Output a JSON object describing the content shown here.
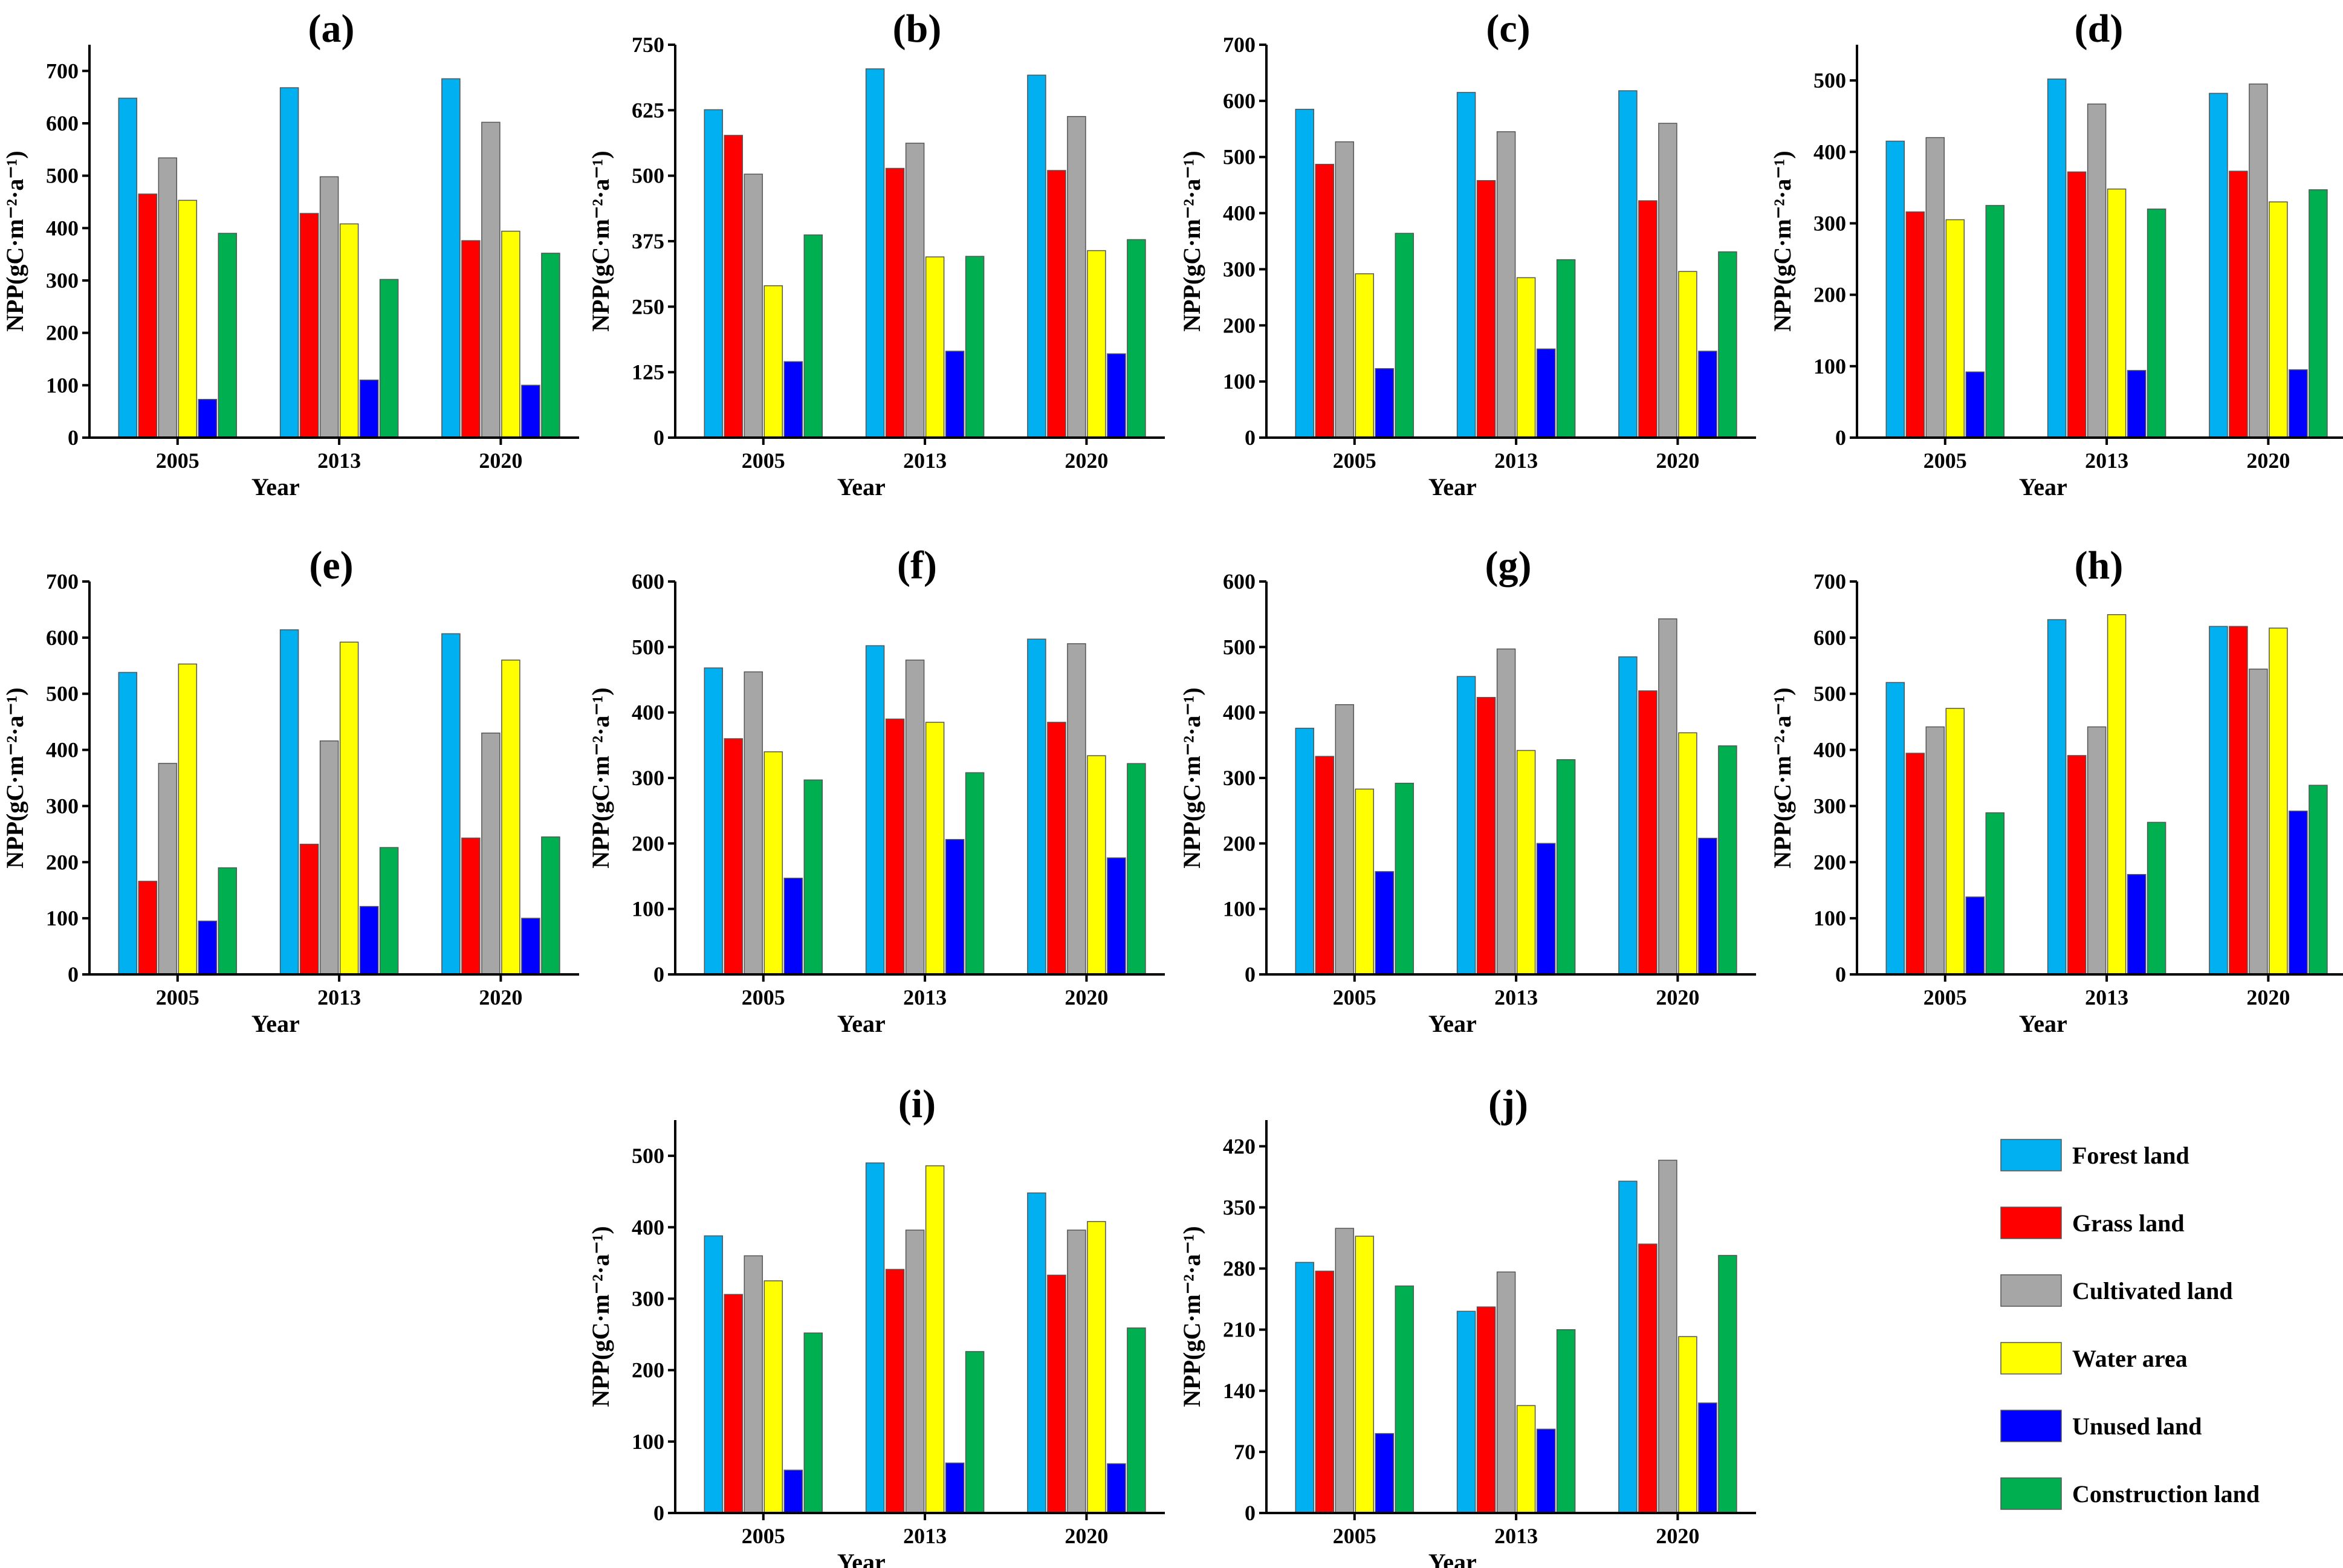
{
  "colors": {
    "Forest land": "#00B0F0",
    "Grass land": "#FF0000",
    "Cultivated land": "#A6A6A6",
    "Water area": "#FFFF00",
    "Unused land": "#0000FF",
    "Construction land": "#00B050"
  },
  "legend": {
    "items": [
      "Forest land",
      "Grass land",
      "Cultivated land",
      "Water area",
      "Unused land",
      "Construction land"
    ]
  },
  "chart_data": [
    {
      "type": "bar",
      "title": "(a)",
      "xlabel": "Year",
      "ylabel": "NPP(gC·m⁻²·a⁻¹)",
      "categories": [
        "2005",
        "2013",
        "2020"
      ],
      "ylim": [
        0,
        750
      ],
      "yticks": [
        0,
        100,
        200,
        300,
        400,
        500,
        600,
        700
      ],
      "series": [
        {
          "name": "Forest land",
          "values": [
            648,
            668,
            685
          ]
        },
        {
          "name": "Grass land",
          "values": [
            465,
            428,
            376
          ]
        },
        {
          "name": "Cultivated land",
          "values": [
            534,
            498,
            602
          ]
        },
        {
          "name": "Water area",
          "values": [
            453,
            408,
            394
          ]
        },
        {
          "name": "Unused land",
          "values": [
            73,
            110,
            100
          ]
        },
        {
          "name": "Construction land",
          "values": [
            390,
            302,
            352
          ]
        }
      ]
    },
    {
      "type": "bar",
      "title": "(b)",
      "xlabel": "Year",
      "ylabel": "NPP(gC·m⁻²·a⁻¹)",
      "categories": [
        "2005",
        "2013",
        "2020"
      ],
      "ylim": [
        0,
        750
      ],
      "yticks": [
        0,
        125,
        250,
        375,
        500,
        625,
        750
      ],
      "series": [
        {
          "name": "Forest land",
          "values": [
            626,
            704,
            692
          ]
        },
        {
          "name": "Grass land",
          "values": [
            577,
            514,
            510
          ]
        },
        {
          "name": "Cultivated land",
          "values": [
            503,
            562,
            613
          ]
        },
        {
          "name": "Water area",
          "values": [
            290,
            345,
            357
          ]
        },
        {
          "name": "Unused land",
          "values": [
            145,
            165,
            160
          ]
        },
        {
          "name": "Construction land",
          "values": [
            387,
            346,
            378
          ]
        }
      ]
    },
    {
      "type": "bar",
      "title": "(c)",
      "xlabel": "Year",
      "ylabel": "NPP(gC·m⁻²·a⁻¹)",
      "categories": [
        "2005",
        "2013",
        "2020"
      ],
      "ylim": [
        0,
        700
      ],
      "yticks": [
        0,
        100,
        200,
        300,
        400,
        500,
        600,
        700
      ],
      "series": [
        {
          "name": "Forest land",
          "values": [
            585,
            615,
            618
          ]
        },
        {
          "name": "Grass land",
          "values": [
            487,
            458,
            422
          ]
        },
        {
          "name": "Cultivated land",
          "values": [
            527,
            545,
            560
          ]
        },
        {
          "name": "Water area",
          "values": [
            292,
            285,
            296
          ]
        },
        {
          "name": "Unused land",
          "values": [
            123,
            158,
            154
          ]
        },
        {
          "name": "Construction land",
          "values": [
            364,
            317,
            331
          ]
        }
      ]
    },
    {
      "type": "bar",
      "title": "(d)",
      "xlabel": "Year",
      "ylabel": "NPP(gC·m⁻²·a⁻¹)",
      "categories": [
        "2005",
        "2013",
        "2020"
      ],
      "ylim": [
        0,
        550
      ],
      "yticks": [
        0,
        100,
        200,
        300,
        400,
        500
      ],
      "series": [
        {
          "name": "Forest land",
          "values": [
            415,
            502,
            482
          ]
        },
        {
          "name": "Grass land",
          "values": [
            316,
            372,
            373
          ]
        },
        {
          "name": "Cultivated land",
          "values": [
            420,
            467,
            495
          ]
        },
        {
          "name": "Water area",
          "values": [
            305,
            348,
            330
          ]
        },
        {
          "name": "Unused land",
          "values": [
            92,
            94,
            95
          ]
        },
        {
          "name": "Construction land",
          "values": [
            325,
            320,
            347
          ]
        }
      ]
    },
    {
      "type": "bar",
      "title": "(e)",
      "xlabel": "Year",
      "ylabel": "NPP(gC·m⁻²·a⁻¹)",
      "categories": [
        "2005",
        "2013",
        "2020"
      ],
      "ylim": [
        0,
        700
      ],
      "yticks": [
        0,
        100,
        200,
        300,
        400,
        500,
        600,
        700
      ],
      "series": [
        {
          "name": "Forest land",
          "values": [
            538,
            614,
            607
          ]
        },
        {
          "name": "Grass land",
          "values": [
            166,
            232,
            243
          ]
        },
        {
          "name": "Cultivated land",
          "values": [
            376,
            416,
            430
          ]
        },
        {
          "name": "Water area",
          "values": [
            553,
            592,
            560
          ]
        },
        {
          "name": "Unused land",
          "values": [
            95,
            121,
            100
          ]
        },
        {
          "name": "Construction land",
          "values": [
            190,
            226,
            245
          ]
        }
      ]
    },
    {
      "type": "bar",
      "title": "(f)",
      "xlabel": "Year",
      "ylabel": "NPP(gC·m⁻²·a⁻¹)",
      "categories": [
        "2005",
        "2013",
        "2020"
      ],
      "ylim": [
        0,
        600
      ],
      "yticks": [
        0,
        100,
        200,
        300,
        400,
        500,
        600
      ],
      "series": [
        {
          "name": "Forest land",
          "values": [
            468,
            502,
            512
          ]
        },
        {
          "name": "Grass land",
          "values": [
            360,
            390,
            385
          ]
        },
        {
          "name": "Cultivated land",
          "values": [
            462,
            480,
            505
          ]
        },
        {
          "name": "Water area",
          "values": [
            340,
            385,
            334
          ]
        },
        {
          "name": "Unused land",
          "values": [
            147,
            206,
            178
          ]
        },
        {
          "name": "Construction land",
          "values": [
            297,
            308,
            322
          ]
        }
      ]
    },
    {
      "type": "bar",
      "title": "(g)",
      "xlabel": "Year",
      "ylabel": "NPP(gC·m⁻²·a⁻¹)",
      "categories": [
        "2005",
        "2013",
        "2020"
      ],
      "ylim": [
        0,
        600
      ],
      "yticks": [
        0,
        100,
        200,
        300,
        400,
        500,
        600
      ],
      "series": [
        {
          "name": "Forest land",
          "values": [
            376,
            455,
            485
          ]
        },
        {
          "name": "Grass land",
          "values": [
            333,
            423,
            433
          ]
        },
        {
          "name": "Cultivated land",
          "values": [
            412,
            497,
            543
          ]
        },
        {
          "name": "Water area",
          "values": [
            283,
            342,
            369
          ]
        },
        {
          "name": "Unused land",
          "values": [
            157,
            200,
            208
          ]
        },
        {
          "name": "Construction land",
          "values": [
            292,
            328,
            349
          ]
        }
      ]
    },
    {
      "type": "bar",
      "title": "(h)",
      "xlabel": "Year",
      "ylabel": "NPP(gC·m⁻²·a⁻¹)",
      "categories": [
        "2005",
        "2013",
        "2020"
      ],
      "ylim": [
        0,
        700
      ],
      "yticks": [
        0,
        100,
        200,
        300,
        400,
        500,
        600,
        700
      ],
      "series": [
        {
          "name": "Forest land",
          "values": [
            520,
            632,
            620
          ]
        },
        {
          "name": "Grass land",
          "values": [
            394,
            390,
            620
          ]
        },
        {
          "name": "Cultivated land",
          "values": [
            441,
            441,
            544
          ]
        },
        {
          "name": "Water area",
          "values": [
            474,
            641,
            617
          ]
        },
        {
          "name": "Unused land",
          "values": [
            138,
            178,
            291
          ]
        },
        {
          "name": "Construction land",
          "values": [
            288,
            271,
            337
          ]
        }
      ]
    },
    {
      "type": "bar",
      "title": "(i)",
      "xlabel": "Year",
      "ylabel": "NPP(gC·m⁻²·a⁻¹)",
      "categories": [
        "2005",
        "2013",
        "2020"
      ],
      "ylim": [
        0,
        550
      ],
      "yticks": [
        0,
        100,
        200,
        300,
        400,
        500
      ],
      "series": [
        {
          "name": "Forest land",
          "values": [
            388,
            490,
            448
          ]
        },
        {
          "name": "Grass land",
          "values": [
            306,
            341,
            333
          ]
        },
        {
          "name": "Cultivated land",
          "values": [
            360,
            396,
            396
          ]
        },
        {
          "name": "Water area",
          "values": [
            325,
            486,
            408
          ]
        },
        {
          "name": "Unused land",
          "values": [
            60,
            70,
            69
          ]
        },
        {
          "name": "Construction land",
          "values": [
            252,
            226,
            259
          ]
        }
      ]
    },
    {
      "type": "bar",
      "title": "(j)",
      "xlabel": "Year",
      "ylabel": "NPP(gC·m⁻²·a⁻¹)",
      "categories": [
        "2005",
        "2013",
        "2020"
      ],
      "ylim": [
        0,
        450
      ],
      "yticks": [
        0,
        70,
        140,
        210,
        280,
        350,
        420
      ],
      "series": [
        {
          "name": "Forest land",
          "values": [
            287,
            231,
            380
          ]
        },
        {
          "name": "Grass land",
          "values": [
            277,
            236,
            308
          ]
        },
        {
          "name": "Cultivated land",
          "values": [
            326,
            276,
            404
          ]
        },
        {
          "name": "Water area",
          "values": [
            317,
            123,
            202
          ]
        },
        {
          "name": "Unused land",
          "values": [
            91,
            96,
            126
          ]
        },
        {
          "name": "Construction land",
          "values": [
            260,
            210,
            295
          ]
        }
      ]
    }
  ]
}
